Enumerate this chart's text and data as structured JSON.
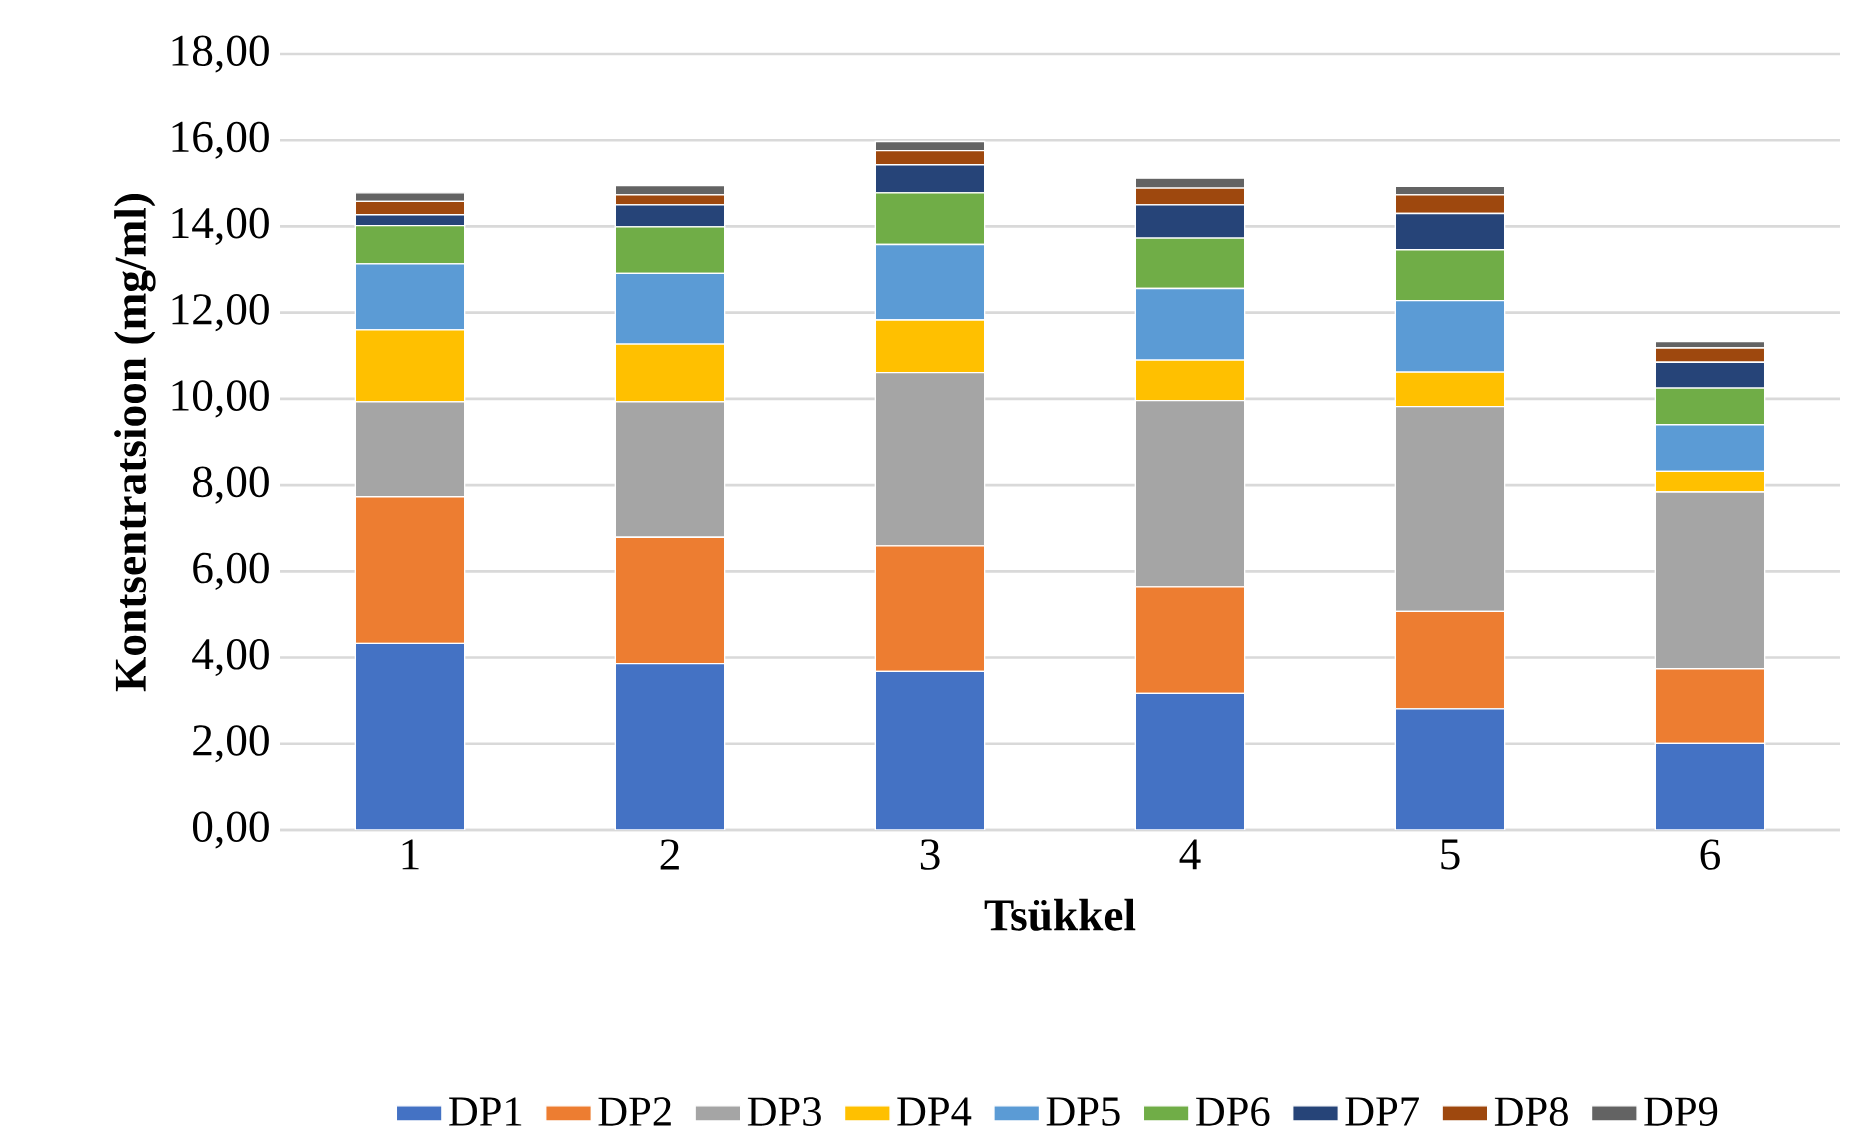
{
  "chart_data": {
    "type": "bar",
    "stacked": true,
    "xlabel": "Tsükkel",
    "ylabel": "Kontsentratsioon (mg/ml)",
    "categories": [
      "1",
      "2",
      "3",
      "4",
      "5",
      "6"
    ],
    "series": [
      {
        "name": "DP1",
        "color": "#4472c4",
        "values": [
          4.33,
          3.86,
          3.68,
          3.17,
          2.81,
          2.01
        ]
      },
      {
        "name": "DP2",
        "color": "#ed7d31",
        "values": [
          3.4,
          2.93,
          2.91,
          2.47,
          2.26,
          1.73
        ]
      },
      {
        "name": "DP3",
        "color": "#a5a5a5",
        "values": [
          2.2,
          3.14,
          4.02,
          4.32,
          4.75,
          4.1
        ]
      },
      {
        "name": "DP4",
        "color": "#ffc000",
        "values": [
          1.67,
          1.34,
          1.22,
          0.94,
          0.8,
          0.48
        ]
      },
      {
        "name": "DP5",
        "color": "#5b9bd5",
        "values": [
          1.53,
          1.64,
          1.75,
          1.66,
          1.66,
          1.08
        ]
      },
      {
        "name": "DP6",
        "color": "#70ad47",
        "values": [
          0.89,
          1.08,
          1.2,
          1.17,
          1.18,
          0.85
        ]
      },
      {
        "name": "DP7",
        "color": "#264478",
        "values": [
          0.25,
          0.51,
          0.65,
          0.77,
          0.84,
          0.6
        ]
      },
      {
        "name": "DP8",
        "color": "#9e480e",
        "values": [
          0.31,
          0.23,
          0.33,
          0.39,
          0.43,
          0.33
        ]
      },
      {
        "name": "DP9",
        "color": "#636363",
        "values": [
          0.2,
          0.22,
          0.21,
          0.23,
          0.2,
          0.15
        ]
      }
    ],
    "ylim": [
      0,
      18
    ],
    "yticks": [
      {
        "value": 0,
        "label": "0,00"
      },
      {
        "value": 2,
        "label": "2,00"
      },
      {
        "value": 4,
        "label": "4,00"
      },
      {
        "value": 6,
        "label": "6,00"
      },
      {
        "value": 8,
        "label": "8,00"
      },
      {
        "value": 10,
        "label": "10,00"
      },
      {
        "value": 12,
        "label": "12,00"
      },
      {
        "value": 14,
        "label": "14,00"
      },
      {
        "value": 16,
        "label": "16,00"
      },
      {
        "value": 18,
        "label": "18,00"
      }
    ],
    "grid": "y",
    "legend": "bottom"
  }
}
